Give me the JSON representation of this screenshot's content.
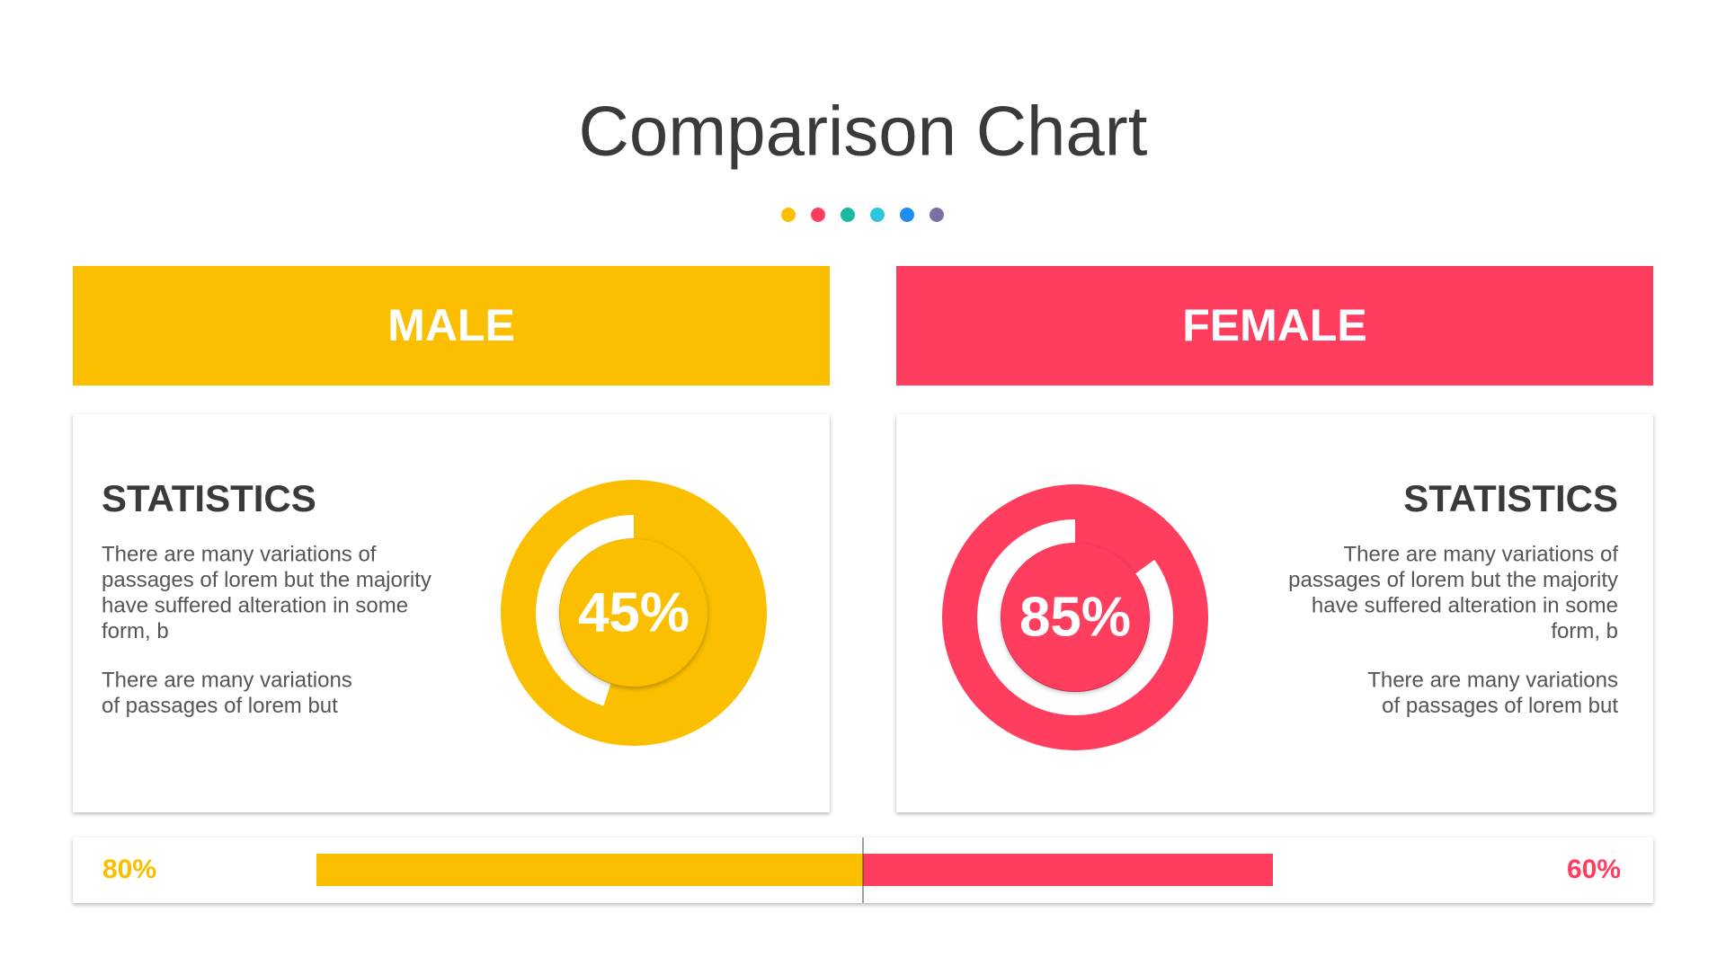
{
  "title": "Comparison Chart",
  "panels": [
    {
      "header": "MALE",
      "color": "#fbbf00",
      "heading": "STATISTICS",
      "paragraphs": [
        [
          "There are many variations of",
          "passages of lorem but the majority",
          "have suffered alteration in some",
          "form, b"
        ],
        [
          "There are many variations",
          "of passages of lorem but"
        ]
      ],
      "value": 45,
      "value_label": "45%"
    },
    {
      "header": "FEMALE",
      "color": "#ff3d5f",
      "heading": "STATISTICS",
      "paragraphs": [
        [
          "There are many variations of",
          "passages of lorem but the majority",
          "have suffered alteration in some",
          "form, b"
        ],
        [
          "There are many variations",
          "of passages of lorem but"
        ]
      ],
      "value": 85,
      "value_label": "85%"
    }
  ],
  "comparison_bar": {
    "left": {
      "value": 80,
      "value_label": "80%",
      "color": "#fbbf00"
    },
    "right": {
      "value": 60,
      "value_label": "60%",
      "color": "#ff3d5f"
    }
  }
}
